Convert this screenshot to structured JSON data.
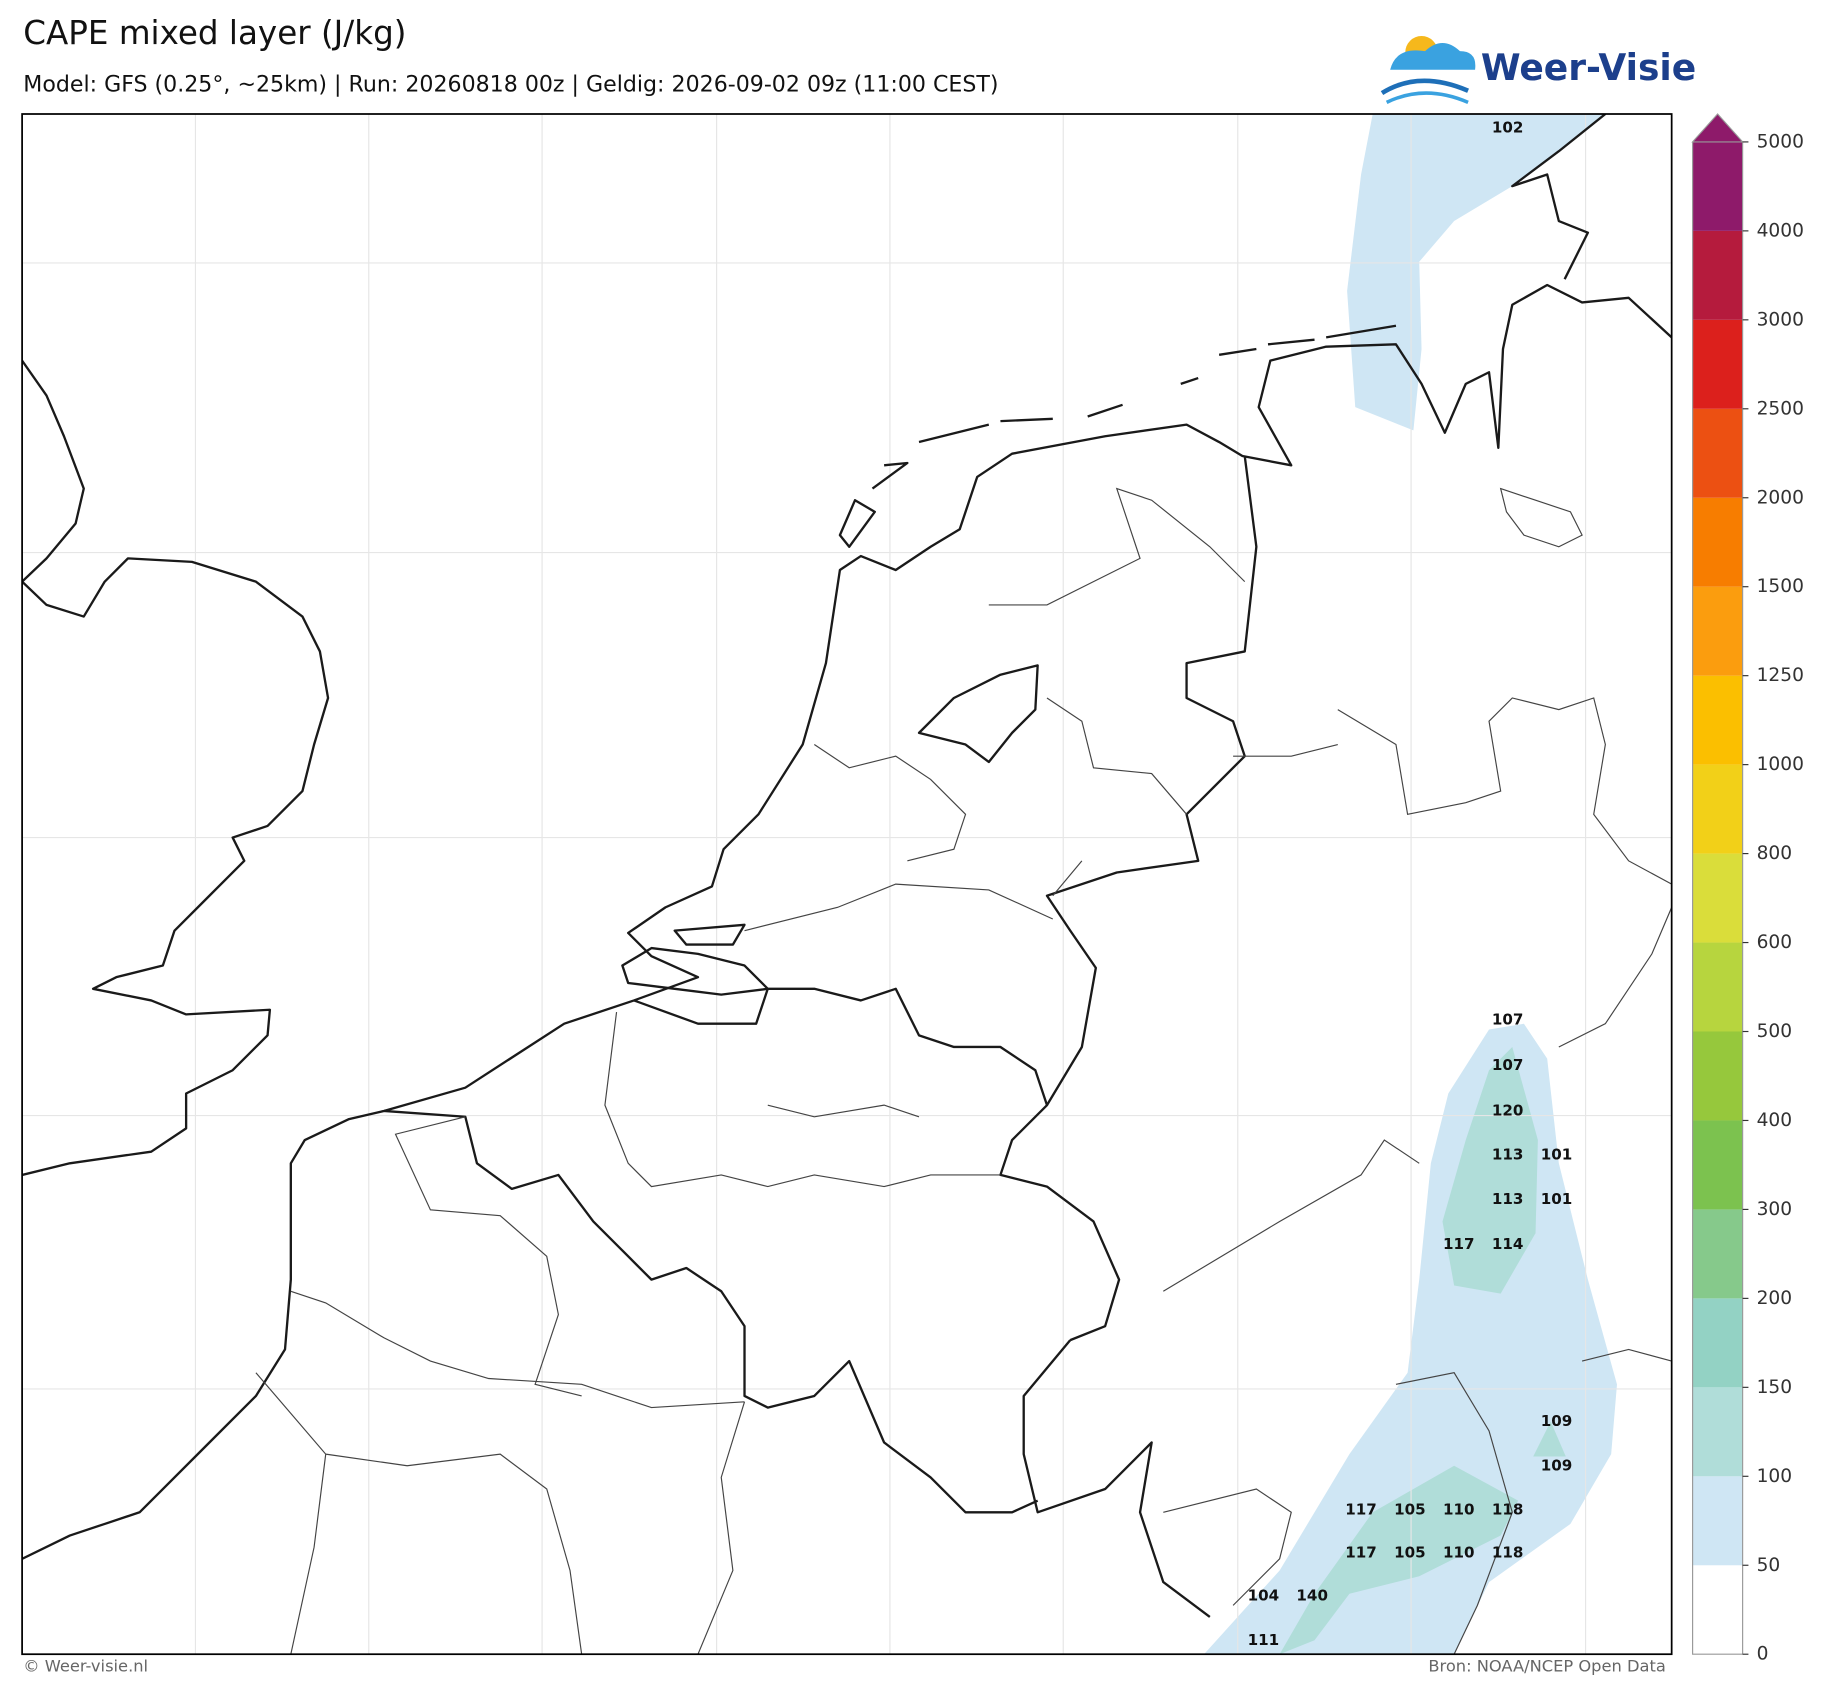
{
  "header": {
    "title": "CAPE mixed layer (J/kg)",
    "subtitle": "Model: GFS (0.25°, ~25km)  |  Run: 20260818 00z  |  Geldig: 2026-09-02 09z (11:00 CEST)",
    "logo": "Weer-Visie"
  },
  "map": {
    "labels": [
      102,
      107,
      107,
      120,
      113,
      101,
      113,
      101,
      117,
      114,
      109,
      109,
      117,
      105,
      110,
      118,
      117,
      105,
      110,
      118,
      104,
      140,
      111
    ]
  },
  "colorbar": {
    "ticks": [
      0,
      50,
      100,
      150,
      200,
      300,
      400,
      500,
      600,
      800,
      1000,
      1250,
      1500,
      2000,
      2500,
      3000,
      4000,
      5000
    ],
    "colors": [
      "#ffffff",
      "#cfe6f4",
      "#b0ddd9",
      "#93d2c4",
      "#86c98b",
      "#7cc24f",
      "#96c83c",
      "#b7d53e",
      "#dadd3a",
      "#f2d018",
      "#fbbf00",
      "#fb9d0e",
      "#f77d00",
      "#ec5012",
      "#dc201c",
      "#b51b3d",
      "#8e1a6a"
    ]
  },
  "footer": {
    "left": "© Weer-visie.nl",
    "right": "Bron: NOAA/NCEP Open Data"
  }
}
